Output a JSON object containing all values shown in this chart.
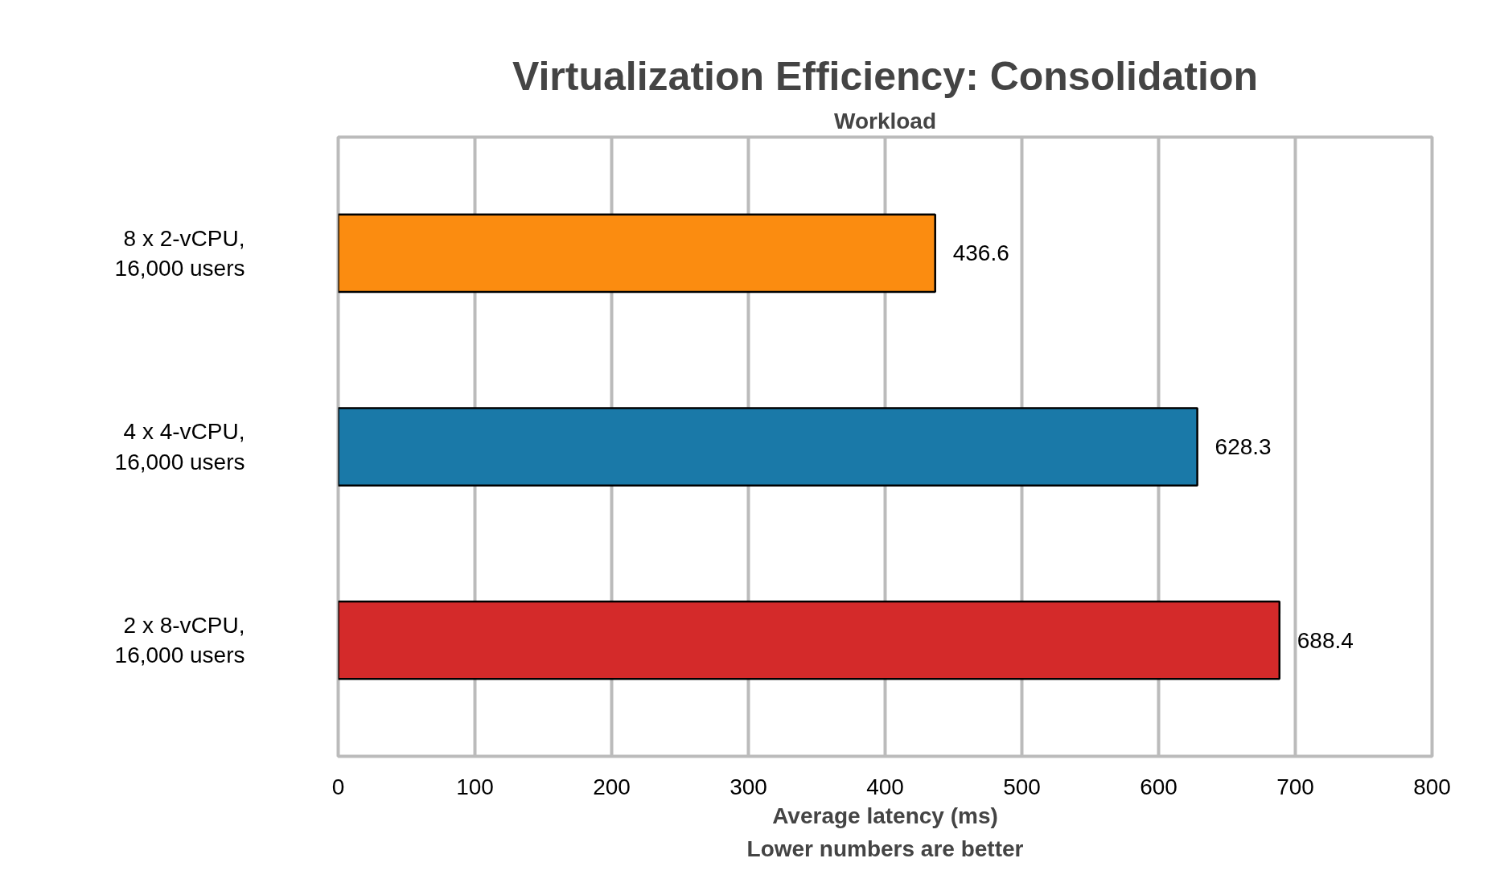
{
  "chart_data": {
    "type": "bar",
    "orientation": "horizontal",
    "title": "Virtualization Efficiency: Consolidation",
    "subtitle": "Workload",
    "xlabel": "Average latency (ms)",
    "annotations": [
      "Lower numbers are better"
    ],
    "categories": [
      "8 x 2-vCPU,\n16,000 users",
      "4 x 4-vCPU,\n16,000 users",
      "2 x 8-vCPU,\n16,000 users"
    ],
    "values": [
      436.6,
      628.3,
      688.4
    ],
    "colors": [
      "#fb8c10",
      "#1a79a8",
      "#d42a2a"
    ],
    "xlim": [
      0,
      800
    ],
    "xticks": [
      0,
      100,
      200,
      300,
      400,
      500,
      600,
      700,
      800
    ],
    "grid": "x",
    "data_labels": true
  }
}
